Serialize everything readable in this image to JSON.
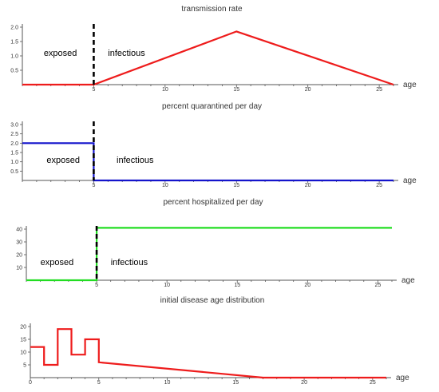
{
  "chart_data": [
    {
      "type": "line",
      "title": "transmission rate",
      "xlabel": "age",
      "ylabel": "",
      "xlim": [
        0,
        26
      ],
      "ylim": [
        0,
        2.0
      ],
      "x_ticks": [
        5,
        10,
        15,
        20,
        25
      ],
      "y_ticks": [
        0.5,
        1.0,
        1.5,
        2.0
      ],
      "y_tick_labels": [
        "0.5",
        "1.0",
        "1.5",
        "2.0"
      ],
      "series": [
        {
          "color": "#ee1c1c",
          "points": [
            [
              0,
              0
            ],
            [
              5,
              0
            ],
            [
              15,
              1.85
            ],
            [
              26,
              0
            ]
          ]
        }
      ],
      "divider": {
        "x": 5,
        "style": "dashed",
        "color": "#000000"
      },
      "annotations": [
        {
          "text": "exposed",
          "x": 1.5,
          "y": 1.0
        },
        {
          "text": "infectious",
          "x": 6.0,
          "y": 1.0
        }
      ]
    },
    {
      "type": "line",
      "title": "percent quarantined per day",
      "xlabel": "age",
      "ylabel": "",
      "xlim": [
        0,
        26
      ],
      "ylim": [
        0,
        3.0
      ],
      "x_ticks": [
        5,
        10,
        15,
        20,
        25
      ],
      "y_ticks": [
        0.5,
        1.0,
        1.5,
        2.0,
        2.5,
        3.0
      ],
      "y_tick_labels": [
        "0.5",
        "1.0",
        "1.5",
        "2.0",
        "2.5",
        "3.0"
      ],
      "series": [
        {
          "color": "#1414cc",
          "points": [
            [
              0,
              2.0
            ],
            [
              5,
              2.0
            ],
            [
              5,
              0
            ],
            [
              26,
              0
            ]
          ]
        }
      ],
      "divider": {
        "x": 5,
        "style": "dashed",
        "color": "#000000"
      },
      "annotations": [
        {
          "text": "exposed",
          "x": 1.7,
          "y": 0.95
        },
        {
          "text": "infectious",
          "x": 6.6,
          "y": 0.95
        }
      ]
    },
    {
      "type": "line",
      "title": "percent hospitalized per day",
      "xlabel": "age",
      "ylabel": "",
      "xlim": [
        0,
        26
      ],
      "ylim": [
        0,
        40
      ],
      "x_ticks": [
        5,
        10,
        15,
        20,
        25
      ],
      "y_ticks": [
        10,
        20,
        30,
        40
      ],
      "y_tick_labels": [
        "10",
        "20",
        "30",
        "40"
      ],
      "series": [
        {
          "color": "#22dd22",
          "points": [
            [
              0,
              0
            ],
            [
              5,
              0
            ],
            [
              5,
              41
            ],
            [
              26,
              41
            ]
          ]
        }
      ],
      "divider": {
        "x": 5,
        "style": "dashed",
        "color": "#000000"
      },
      "annotations": [
        {
          "text": "exposed",
          "x": 1.0,
          "y": 12
        },
        {
          "text": "infectious",
          "x": 6.0,
          "y": 12
        }
      ]
    },
    {
      "type": "line",
      "title": "initial disease age distribution",
      "xlabel": "age",
      "ylabel": "",
      "xlim": [
        0,
        26
      ],
      "ylim": [
        0,
        20
      ],
      "x_ticks": [
        0,
        5,
        10,
        15,
        20,
        25
      ],
      "y_ticks": [
        5,
        10,
        15,
        20
      ],
      "y_tick_labels": [
        "5",
        "10",
        "15",
        "20"
      ],
      "series": [
        {
          "color": "#ee1c1c",
          "points": [
            [
              0,
              12
            ],
            [
              1,
              12
            ],
            [
              1,
              5
            ],
            [
              2,
              5
            ],
            [
              2,
              19
            ],
            [
              3,
              19
            ],
            [
              3,
              9
            ],
            [
              4,
              9
            ],
            [
              4,
              15
            ],
            [
              5,
              15
            ],
            [
              5,
              6
            ],
            [
              17,
              0
            ],
            [
              26,
              0
            ]
          ]
        }
      ],
      "annotations": []
    }
  ]
}
